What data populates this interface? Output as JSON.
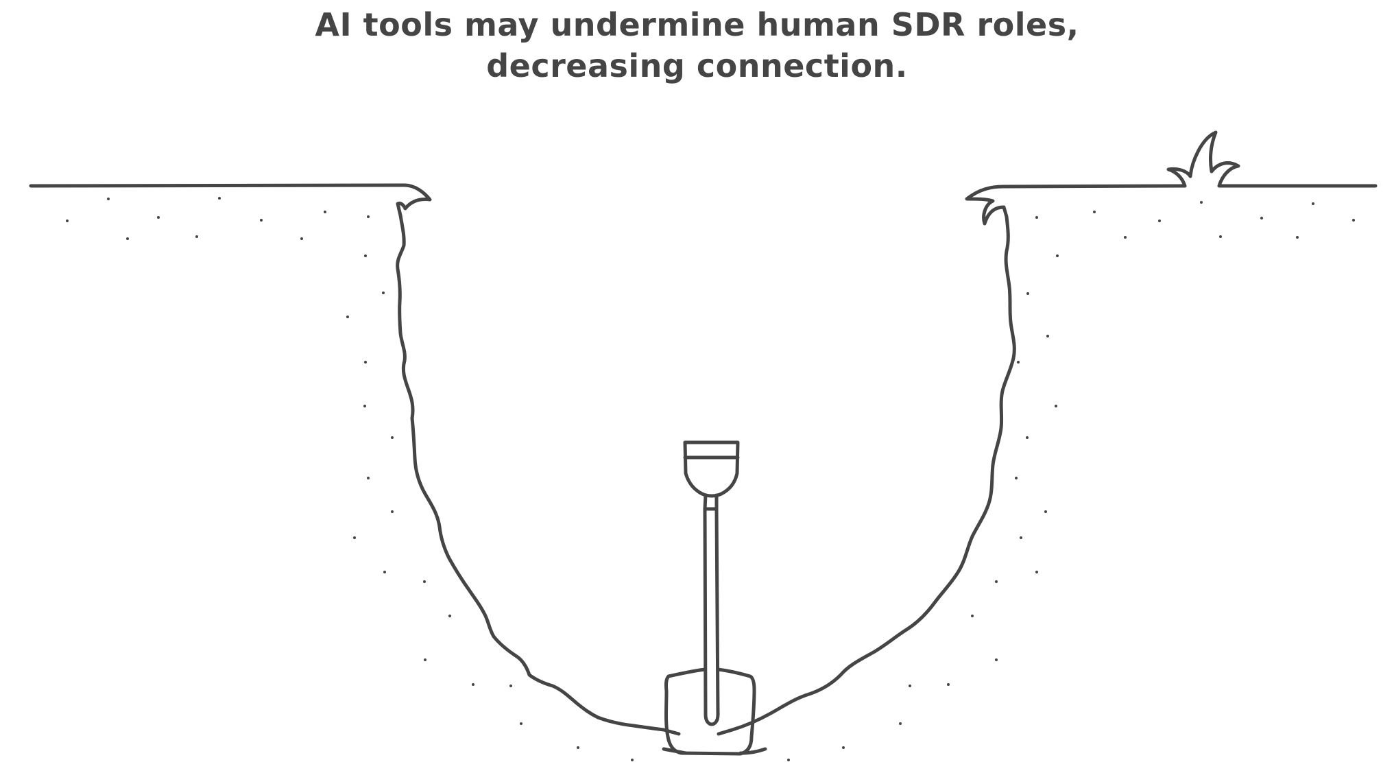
{
  "caption": {
    "line1": "AI tools may undermine human SDR roles,",
    "line2": "decreasing connection."
  },
  "illustration": {
    "subject": "shovel-in-dug-hole",
    "line_color": "#454545",
    "background_color": "#ffffff"
  }
}
